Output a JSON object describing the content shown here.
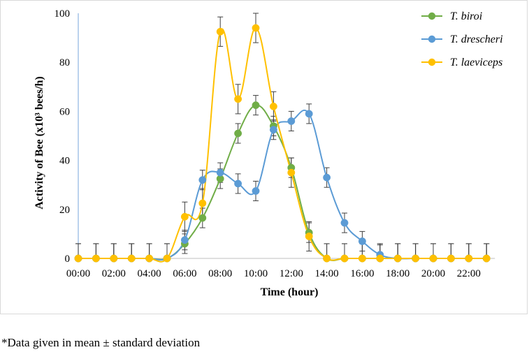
{
  "chart_data": {
    "type": "line",
    "title": "",
    "xlabel": "Time (hour)",
    "ylabel": "Activity of Bee (x10³ bees/h)",
    "ylim": [
      0,
      100
    ],
    "yticks": [
      "0",
      "20",
      "40",
      "60",
      "80",
      "100"
    ],
    "x_hours": [
      0,
      1,
      2,
      3,
      4,
      5,
      6,
      7,
      8,
      9,
      10,
      11,
      12,
      13,
      14,
      15,
      16,
      17,
      18,
      19,
      20,
      21,
      22,
      23
    ],
    "x_tick_labels": [
      "00:00",
      "02:00",
      "04:00",
      "06:00",
      "08:00",
      "10:00",
      "12:00",
      "14:00",
      "16:00",
      "18:00",
      "20:00",
      "22:00"
    ],
    "x_tick_hours": [
      0,
      2,
      4,
      6,
      8,
      10,
      12,
      14,
      16,
      18,
      20,
      22
    ],
    "legend_position": "top-right",
    "series": [
      {
        "name": "T. biroi",
        "color": "#70ad47",
        "values": [
          0,
          0,
          0,
          0,
          0,
          0,
          6,
          16.5,
          32.5,
          51,
          62.5,
          54,
          37,
          10.5,
          0,
          0,
          0,
          0,
          0,
          0,
          0,
          0,
          0,
          0
        ],
        "errors": [
          6,
          6,
          6,
          6,
          6,
          6,
          4,
          4,
          4,
          4,
          4,
          4,
          4,
          4,
          6,
          6,
          6,
          6,
          6,
          6,
          6,
          6,
          6,
          6
        ]
      },
      {
        "name": "T. drescheri",
        "color": "#5b9bd5",
        "values": [
          0,
          0,
          0,
          0,
          0,
          0,
          7.5,
          32,
          35,
          30.5,
          27.5,
          52.5,
          56,
          59,
          33,
          14.5,
          7,
          1.5,
          0,
          0,
          0,
          0,
          0,
          0
        ],
        "errors": [
          6,
          6,
          6,
          6,
          6,
          6,
          4,
          4,
          4,
          4,
          4,
          4,
          4,
          4,
          4,
          4,
          4,
          4,
          6,
          6,
          6,
          6,
          6,
          6
        ]
      },
      {
        "name": "T. laeviceps",
        "color": "#ffc000",
        "values": [
          0,
          0,
          0,
          0,
          0,
          0,
          17,
          22.5,
          92.5,
          65,
          94,
          62,
          35,
          9,
          0,
          0,
          0,
          0,
          0,
          0,
          0,
          0,
          0,
          0
        ],
        "errors": [
          6,
          6,
          6,
          6,
          6,
          6,
          6,
          6,
          6,
          6,
          6,
          6,
          6,
          6,
          6,
          6,
          6,
          6,
          6,
          6,
          6,
          6,
          6,
          6
        ]
      }
    ]
  },
  "footnote": "*Data given in mean ± standard deviation"
}
